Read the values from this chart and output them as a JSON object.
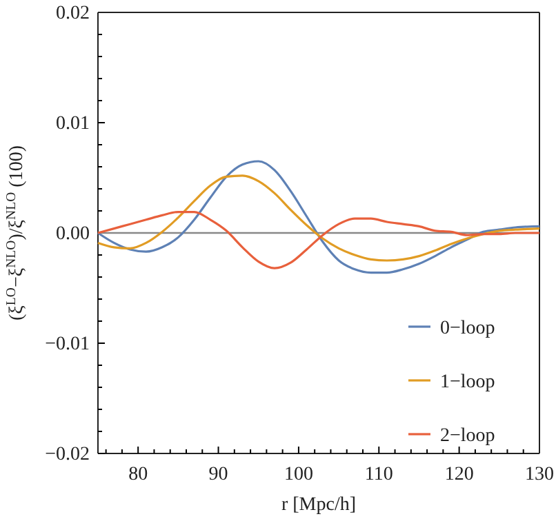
{
  "chart_data": {
    "type": "line",
    "xlabel": "r [Mpc/h]",
    "ylabel": "(ξ$^{LO}$−ξ$^{NLO}$)/ξ$^{NLO}$ (100)",
    "xlim": [
      75,
      130
    ],
    "ylim": [
      -0.02,
      0.02
    ],
    "xticks": [
      80,
      90,
      100,
      110,
      120,
      130,
      {
        "value": 76,
        "label": null
      },
      {
        "value": 78,
        "label": null
      },
      {
        "value": 82,
        "label": null
      },
      {
        "value": 84,
        "label": null
      },
      {
        "value": 86,
        "label": null
      },
      {
        "value": 88,
        "label": null
      },
      {
        "value": 92,
        "label": null
      },
      {
        "value": 94,
        "label": null
      },
      {
        "value": 96,
        "label": null
      },
      {
        "value": 98,
        "label": null
      },
      {
        "value": 102,
        "label": null
      },
      {
        "value": 104,
        "label": null
      },
      {
        "value": 106,
        "label": null
      },
      {
        "value": 108,
        "label": null
      },
      {
        "value": 112,
        "label": null
      },
      {
        "value": 114,
        "label": null
      },
      {
        "value": 116,
        "label": null
      },
      {
        "value": 118,
        "label": null
      },
      {
        "value": 122,
        "label": null
      },
      {
        "value": 124,
        "label": null
      },
      {
        "value": 126,
        "label": null
      },
      {
        "value": 128,
        "label": null
      }
    ],
    "yticks": [
      {
        "value": -0.02,
        "label": "−0.02"
      },
      {
        "value": -0.01,
        "label": "−0.01"
      },
      {
        "value": 0,
        "label": "0.00"
      },
      {
        "value": 0.01,
        "label": "0.01"
      },
      {
        "value": 0.02,
        "label": "0.02"
      },
      {
        "value": -0.018,
        "label": null
      },
      {
        "value": -0.016,
        "label": null
      },
      {
        "value": -0.014,
        "label": null
      },
      {
        "value": -0.012,
        "label": null
      },
      {
        "value": -0.008,
        "label": null
      },
      {
        "value": -0.006,
        "label": null
      },
      {
        "value": -0.004,
        "label": null
      },
      {
        "value": -0.002,
        "label": null
      },
      {
        "value": 0.002,
        "label": null
      },
      {
        "value": 0.004,
        "label": null
      },
      {
        "value": 0.006,
        "label": null
      },
      {
        "value": 0.008,
        "label": null
      },
      {
        "value": 0.012,
        "label": null
      },
      {
        "value": 0.014,
        "label": null
      },
      {
        "value": 0.016,
        "label": null
      },
      {
        "value": 0.018,
        "label": null
      }
    ],
    "x": [
      75,
      77,
      79,
      81,
      83,
      85,
      87,
      89,
      91,
      93,
      95,
      97,
      99,
      101,
      103,
      105,
      107,
      109,
      111,
      113,
      115,
      117,
      119,
      121,
      123,
      125,
      127,
      130
    ],
    "series": [
      {
        "name": "0−loop",
        "color": "#5e81b5",
        "values": [
          0,
          -0.0009,
          -0.0015,
          -0.0017,
          -0.0013,
          -0.0004,
          0.0012,
          0.0032,
          0.0051,
          0.0062,
          0.0065,
          0.0057,
          0.0038,
          0.0015,
          -0.0008,
          -0.0025,
          -0.0033,
          -0.0036,
          -0.0036,
          -0.0033,
          -0.0028,
          -0.0021,
          -0.0013,
          -0.0006,
          0.0001,
          0.0003,
          0.0005,
          0.0006
        ]
      },
      {
        "name": "1−loop",
        "color": "#e19c24",
        "values": [
          -0.0009,
          -0.0013,
          -0.0014,
          -0.0009,
          0.0001,
          0.0014,
          0.0029,
          0.0043,
          0.0051,
          0.0052,
          0.0047,
          0.0036,
          0.0021,
          0.0007,
          -0.0005,
          -0.0014,
          -0.002,
          -0.0024,
          -0.0025,
          -0.0024,
          -0.0021,
          -0.0016,
          -0.001,
          -0.0005,
          -0.0001,
          0.0002,
          0.0003,
          0.0004
        ]
      },
      {
        "name": "2−loop",
        "color": "#e8603c",
        "values": [
          0,
          0.0004,
          0.0008,
          0.0012,
          0.0016,
          0.0019,
          0.0019,
          0.0012,
          0.0002,
          -0.0013,
          -0.0026,
          -0.0032,
          -0.0027,
          -0.0015,
          -0.0002,
          0.0008,
          0.0013,
          0.0013,
          0.001,
          0.0008,
          0.0006,
          0.0002,
          0.0001,
          -0.0002,
          -0.0001,
          -0.0001,
          0,
          0
        ]
      }
    ],
    "ref_lines": [
      {
        "axis": "y",
        "value": 0,
        "color": "#888888"
      }
    ],
    "legend": "bottom right"
  }
}
